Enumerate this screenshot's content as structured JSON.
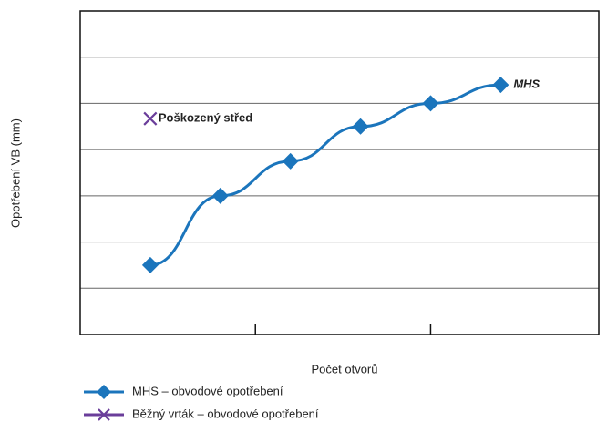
{
  "chart_data": {
    "type": "line",
    "xlabel": "Počet otvorů",
    "ylabel": "Opotřebení VB (mm)",
    "xlim": [
      0,
      7.4
    ],
    "ylim": [
      0,
      7
    ],
    "xticks": [
      2.5,
      5
    ],
    "yticks": [
      1,
      2,
      3,
      4,
      5,
      6
    ],
    "grid": true,
    "series": [
      {
        "name": "MHS – obvodové opotřebení",
        "color": "#1b75bc",
        "marker": "diamond",
        "x": [
          1,
          2,
          3,
          4,
          5,
          6
        ],
        "values": [
          1.5,
          3,
          3.75,
          4.5,
          5,
          5.4
        ],
        "annotation": "MHS"
      },
      {
        "name": "Běžný vrták – obvodové opotřebení",
        "color": "#6a3d9a",
        "marker": "x",
        "x": [
          1
        ],
        "values": [
          4.67
        ],
        "annotation": "Poškozený střed"
      }
    ]
  }
}
